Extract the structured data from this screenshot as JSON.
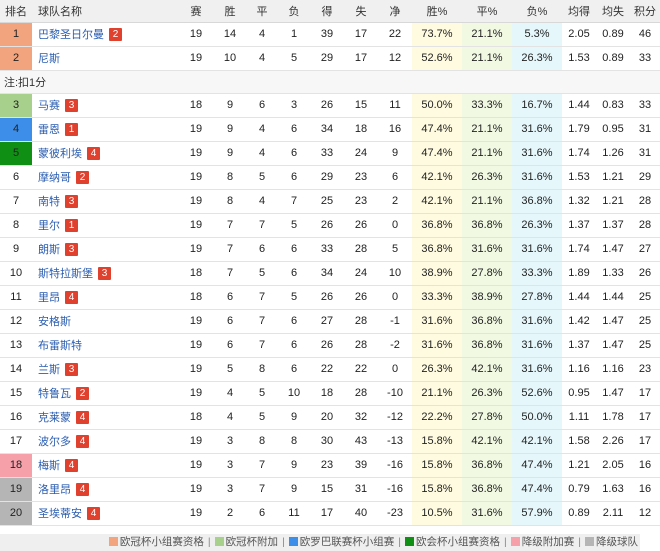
{
  "headers": [
    "排名",
    "球队名称",
    "赛",
    "胜",
    "平",
    "负",
    "得",
    "失",
    "净",
    "胜%",
    "平%",
    "负%",
    "均得",
    "均失",
    "积分"
  ],
  "note": "注:扣1分",
  "rank_colors": {
    "champions": "#f2a47e",
    "champions_qual": "#a8d08d",
    "europa": "#3c8ee8",
    "conference": "#0f8f14",
    "relegation_playoff": "#f6a0a9",
    "relegated": "#b5b5b5",
    "none": "#ffffff"
  },
  "rows_top": [
    {
      "rank": "1",
      "zone": "champions",
      "team": "巴黎圣日尔曼",
      "badge": "2",
      "p": "19",
      "w": "14",
      "d": "4",
      "l": "1",
      "gf": "39",
      "ga": "17",
      "gd": "22",
      "wp": "73.7%",
      "dp": "21.1%",
      "lp": "5.3%",
      "avg_f": "2.05",
      "avg_a": "0.89",
      "pts": "46"
    },
    {
      "rank": "2",
      "zone": "champions",
      "team": "尼斯",
      "badge": "",
      "p": "19",
      "w": "10",
      "d": "4",
      "l": "5",
      "gf": "29",
      "ga": "17",
      "gd": "12",
      "wp": "52.6%",
      "dp": "21.1%",
      "lp": "26.3%",
      "avg_f": "1.53",
      "avg_a": "0.89",
      "pts": "33"
    }
  ],
  "rows": [
    {
      "rank": "3",
      "zone": "champions_qual",
      "team": "马赛",
      "badge": "3",
      "p": "18",
      "w": "9",
      "d": "6",
      "l": "3",
      "gf": "26",
      "ga": "15",
      "gd": "11",
      "wp": "50.0%",
      "dp": "33.3%",
      "lp": "16.7%",
      "avg_f": "1.44",
      "avg_a": "0.83",
      "pts": "33"
    },
    {
      "rank": "4",
      "zone": "europa",
      "team": "雷恩",
      "badge": "1",
      "p": "19",
      "w": "9",
      "d": "4",
      "l": "6",
      "gf": "34",
      "ga": "18",
      "gd": "16",
      "wp": "47.4%",
      "dp": "21.1%",
      "lp": "31.6%",
      "avg_f": "1.79",
      "avg_a": "0.95",
      "pts": "31"
    },
    {
      "rank": "5",
      "zone": "conference",
      "team": "蒙彼利埃",
      "badge": "4",
      "p": "19",
      "w": "9",
      "d": "4",
      "l": "6",
      "gf": "33",
      "ga": "24",
      "gd": "9",
      "wp": "47.4%",
      "dp": "21.1%",
      "lp": "31.6%",
      "avg_f": "1.74",
      "avg_a": "1.26",
      "pts": "31"
    },
    {
      "rank": "6",
      "zone": "none",
      "team": "摩纳哥",
      "badge": "2",
      "p": "19",
      "w": "8",
      "d": "5",
      "l": "6",
      "gf": "29",
      "ga": "23",
      "gd": "6",
      "wp": "42.1%",
      "dp": "26.3%",
      "lp": "31.6%",
      "avg_f": "1.53",
      "avg_a": "1.21",
      "pts": "29"
    },
    {
      "rank": "7",
      "zone": "none",
      "team": "南特",
      "badge": "3",
      "p": "19",
      "w": "8",
      "d": "4",
      "l": "7",
      "gf": "25",
      "ga": "23",
      "gd": "2",
      "wp": "42.1%",
      "dp": "21.1%",
      "lp": "36.8%",
      "avg_f": "1.32",
      "avg_a": "1.21",
      "pts": "28"
    },
    {
      "rank": "8",
      "zone": "none",
      "team": "里尔",
      "badge": "1",
      "p": "19",
      "w": "7",
      "d": "7",
      "l": "5",
      "gf": "26",
      "ga": "26",
      "gd": "0",
      "wp": "36.8%",
      "dp": "36.8%",
      "lp": "26.3%",
      "avg_f": "1.37",
      "avg_a": "1.37",
      "pts": "28"
    },
    {
      "rank": "9",
      "zone": "none",
      "team": "朗斯",
      "badge": "3",
      "p": "19",
      "w": "7",
      "d": "6",
      "l": "6",
      "gf": "33",
      "ga": "28",
      "gd": "5",
      "wp": "36.8%",
      "dp": "31.6%",
      "lp": "31.6%",
      "avg_f": "1.74",
      "avg_a": "1.47",
      "pts": "27"
    },
    {
      "rank": "10",
      "zone": "none",
      "team": "斯特拉斯堡",
      "badge": "3",
      "p": "18",
      "w": "7",
      "d": "5",
      "l": "6",
      "gf": "34",
      "ga": "24",
      "gd": "10",
      "wp": "38.9%",
      "dp": "27.8%",
      "lp": "33.3%",
      "avg_f": "1.89",
      "avg_a": "1.33",
      "pts": "26"
    },
    {
      "rank": "11",
      "zone": "none",
      "team": "里昂",
      "badge": "4",
      "p": "18",
      "w": "6",
      "d": "7",
      "l": "5",
      "gf": "26",
      "ga": "26",
      "gd": "0",
      "wp": "33.3%",
      "dp": "38.9%",
      "lp": "27.8%",
      "avg_f": "1.44",
      "avg_a": "1.44",
      "pts": "25"
    },
    {
      "rank": "12",
      "zone": "none",
      "team": "安格斯",
      "badge": "",
      "p": "19",
      "w": "6",
      "d": "7",
      "l": "6",
      "gf": "27",
      "ga": "28",
      "gd": "-1",
      "wp": "31.6%",
      "dp": "36.8%",
      "lp": "31.6%",
      "avg_f": "1.42",
      "avg_a": "1.47",
      "pts": "25"
    },
    {
      "rank": "13",
      "zone": "none",
      "team": "布雷斯特",
      "badge": "",
      "p": "19",
      "w": "6",
      "d": "7",
      "l": "6",
      "gf": "26",
      "ga": "28",
      "gd": "-2",
      "wp": "31.6%",
      "dp": "36.8%",
      "lp": "31.6%",
      "avg_f": "1.37",
      "avg_a": "1.47",
      "pts": "25"
    },
    {
      "rank": "14",
      "zone": "none",
      "team": "兰斯",
      "badge": "3",
      "p": "19",
      "w": "5",
      "d": "8",
      "l": "6",
      "gf": "22",
      "ga": "22",
      "gd": "0",
      "wp": "26.3%",
      "dp": "42.1%",
      "lp": "31.6%",
      "avg_f": "1.16",
      "avg_a": "1.16",
      "pts": "23"
    },
    {
      "rank": "15",
      "zone": "none",
      "team": "特鲁瓦",
      "badge": "2",
      "p": "19",
      "w": "4",
      "d": "5",
      "l": "10",
      "gf": "18",
      "ga": "28",
      "gd": "-10",
      "wp": "21.1%",
      "dp": "26.3%",
      "lp": "52.6%",
      "avg_f": "0.95",
      "avg_a": "1.47",
      "pts": "17"
    },
    {
      "rank": "16",
      "zone": "none",
      "team": "克莱蒙",
      "badge": "4",
      "p": "18",
      "w": "4",
      "d": "5",
      "l": "9",
      "gf": "20",
      "ga": "32",
      "gd": "-12",
      "wp": "22.2%",
      "dp": "27.8%",
      "lp": "50.0%",
      "avg_f": "1.11",
      "avg_a": "1.78",
      "pts": "17"
    },
    {
      "rank": "17",
      "zone": "none",
      "team": "波尔多",
      "badge": "4",
      "p": "19",
      "w": "3",
      "d": "8",
      "l": "8",
      "gf": "30",
      "ga": "43",
      "gd": "-13",
      "wp": "15.8%",
      "dp": "42.1%",
      "lp": "42.1%",
      "avg_f": "1.58",
      "avg_a": "2.26",
      "pts": "17"
    },
    {
      "rank": "18",
      "zone": "relegation_playoff",
      "team": "梅斯",
      "badge": "4",
      "p": "19",
      "w": "3",
      "d": "7",
      "l": "9",
      "gf": "23",
      "ga": "39",
      "gd": "-16",
      "wp": "15.8%",
      "dp": "36.8%",
      "lp": "47.4%",
      "avg_f": "1.21",
      "avg_a": "2.05",
      "pts": "16"
    },
    {
      "rank": "19",
      "zone": "relegated",
      "team": "洛里昂",
      "badge": "4",
      "p": "19",
      "w": "3",
      "d": "7",
      "l": "9",
      "gf": "15",
      "ga": "31",
      "gd": "-16",
      "wp": "15.8%",
      "dp": "36.8%",
      "lp": "47.4%",
      "avg_f": "0.79",
      "avg_a": "1.63",
      "pts": "16"
    },
    {
      "rank": "20",
      "zone": "relegated",
      "team": "圣埃蒂安",
      "badge": "4",
      "p": "19",
      "w": "2",
      "d": "6",
      "l": "11",
      "gf": "17",
      "ga": "40",
      "gd": "-23",
      "wp": "10.5%",
      "dp": "31.6%",
      "lp": "57.9%",
      "avg_f": "0.89",
      "avg_a": "2.11",
      "pts": "12"
    }
  ],
  "legend": [
    {
      "label": "欧冠杯小组赛资格",
      "color": "#f2a47e"
    },
    {
      "label": "欧冠杯附加",
      "color": "#a8d08d"
    },
    {
      "label": "欧罗巴联赛杯小组赛",
      "color": "#3c8ee8"
    },
    {
      "label": "欧会杯小组赛资格",
      "color": "#0f8f14"
    },
    {
      "label": "降级附加赛",
      "color": "#f6a0a9"
    },
    {
      "label": "降级球队",
      "color": "#b5b5b5"
    }
  ]
}
